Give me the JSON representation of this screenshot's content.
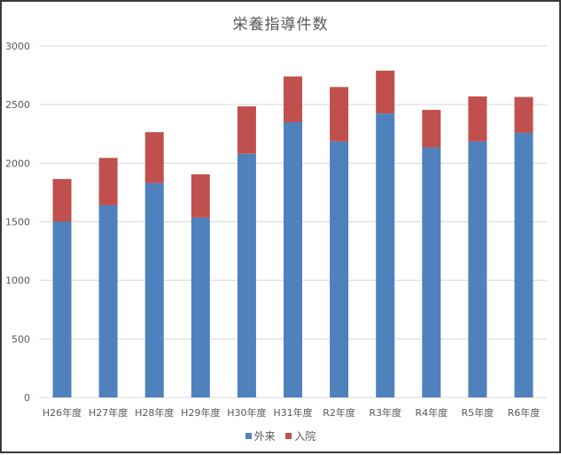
{
  "chart_data": {
    "type": "bar",
    "stacked": true,
    "title": "栄養指導件数",
    "xlabel": "",
    "ylabel": "",
    "ylim": [
      0,
      3000
    ],
    "yticks": [
      0,
      500,
      1000,
      1500,
      2000,
      2500,
      3000
    ],
    "grid": true,
    "legend_position": "bottom",
    "categories": [
      "H26年度",
      "H27年度",
      "H28年度",
      "H29年度",
      "H30年度",
      "H31年度",
      "R2年度",
      "R3年度",
      "R4年度",
      "R5年度",
      "R6年度"
    ],
    "series": [
      {
        "name": "外来",
        "color": "#4f81bd",
        "values": [
          1500,
          1640,
          1830,
          1535,
          2080,
          2350,
          2185,
          2425,
          2135,
          2185,
          2260
        ]
      },
      {
        "name": "入院",
        "color": "#c0504d",
        "values": [
          365,
          405,
          435,
          370,
          405,
          390,
          465,
          365,
          320,
          385,
          305
        ]
      }
    ]
  },
  "title": "栄養指導件数",
  "legend": [
    {
      "label": "外来",
      "color": "#4f81bd"
    },
    {
      "label": "入院",
      "color": "#c0504d"
    }
  ]
}
